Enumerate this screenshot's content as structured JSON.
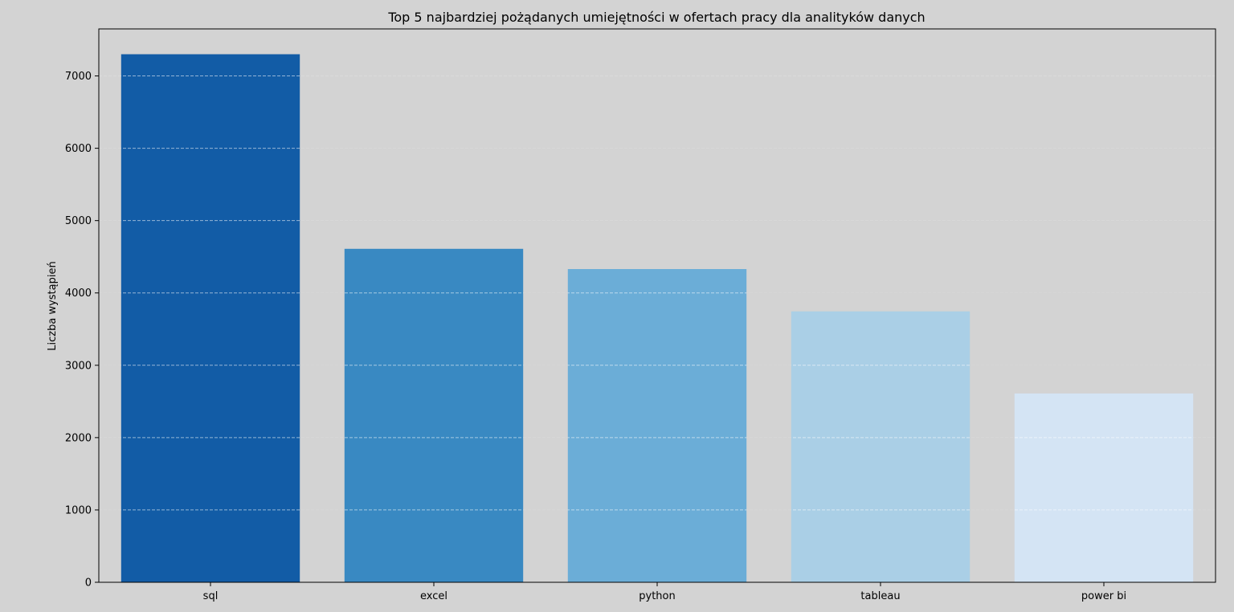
{
  "chart_data": {
    "type": "bar",
    "title": "Top 5 najbardziej pożądanych umiejętności w ofertach pracy dla analityków danych",
    "xlabel": "",
    "ylabel": "Liczba wystąpień",
    "categories": [
      "sql",
      "excel",
      "python",
      "tableau",
      "power bi"
    ],
    "values": [
      7300,
      4610,
      4330,
      3745,
      2610
    ],
    "bar_colors": [
      "#125ca6",
      "#3989c2",
      "#6badd7",
      "#aacfe6",
      "#d4e4f4"
    ],
    "ylim": [
      0,
      7650
    ],
    "yticks": [
      0,
      1000,
      2000,
      3000,
      4000,
      5000,
      6000,
      7000
    ],
    "grid": "horizontal dashed",
    "background_color": "#d3d3d3",
    "grid_color": "#b0b0b0"
  }
}
